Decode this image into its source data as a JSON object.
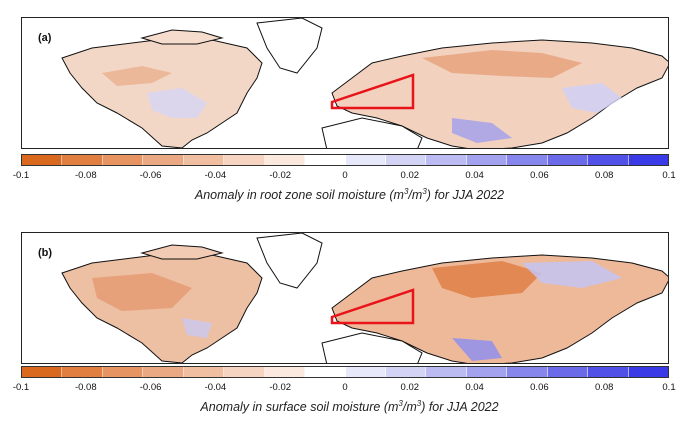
{
  "panels": [
    {
      "label": "(a)",
      "colorbar_title_prefix": "Anomaly in root zone soil moisture (m",
      "colorbar_title_mid": "/m",
      "colorbar_title_suffix": ") for JJA 2022",
      "exponent": "3"
    },
    {
      "label": "(b)",
      "colorbar_title_prefix": "Anomaly in surface soil moisture (m",
      "colorbar_title_mid": "/m",
      "colorbar_title_suffix": ") for JJA 2022",
      "exponent": "3"
    }
  ],
  "colorbar": {
    "ticks": [
      "-0.1",
      "-0.08",
      "-0.06",
      "-0.04",
      "-0.02",
      "0",
      "0.02",
      "0.04",
      "0.06",
      "0.08",
      "0.1"
    ],
    "colors": [
      "#d9691e",
      "#e07f3f",
      "#e69562",
      "#eba983",
      "#f0bea1",
      "#f5d5c2",
      "#fbe9df",
      "#ffffff",
      "#e8e8fb",
      "#d3d3f6",
      "#bbbbf2",
      "#a2a2ef",
      "#8686ec",
      "#6b6bea",
      "#5151e8",
      "#3a3ae6"
    ]
  },
  "highlight_color": "#e8141a"
}
